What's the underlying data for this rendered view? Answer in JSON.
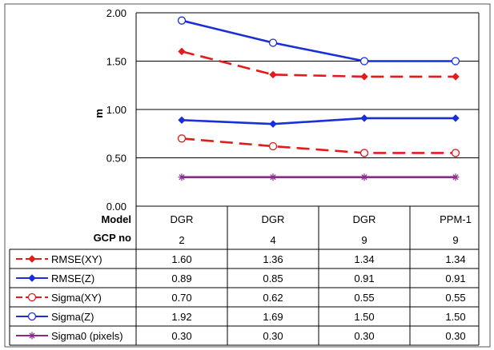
{
  "chart_data": {
    "type": "line",
    "ylabel": "m",
    "ylim": [
      0,
      2
    ],
    "yticks": [
      "2.00",
      "1.50",
      "1.00",
      "0.50",
      "0.00"
    ],
    "y_grid": true,
    "categories": [
      {
        "model": "DGR",
        "gcp": "2"
      },
      {
        "model": "DGR",
        "gcp": "4"
      },
      {
        "model": "DGR",
        "gcp": "9"
      },
      {
        "model": "PPM-1",
        "gcp": "9"
      }
    ],
    "row_headers": {
      "model": "Model",
      "gcp": "GCP no"
    },
    "series": [
      {
        "name": "RMSE(XY)",
        "values": [
          1.6,
          1.36,
          1.34,
          1.34
        ],
        "labels": [
          "1.60",
          "1.36",
          "1.34",
          "1.34"
        ],
        "color": "#e31b1b",
        "marker": "diamond-filled",
        "dash": true
      },
      {
        "name": "RMSE(Z)",
        "values": [
          0.89,
          0.85,
          0.91,
          0.91
        ],
        "labels": [
          "0.89",
          "0.85",
          "0.91",
          "0.91"
        ],
        "color": "#1a2fd6",
        "marker": "diamond-filled",
        "dash": false
      },
      {
        "name": "Sigma(XY)",
        "values": [
          0.7,
          0.62,
          0.55,
          0.55
        ],
        "labels": [
          "0.70",
          "0.62",
          "0.55",
          "0.55"
        ],
        "color": "#e31b1b",
        "marker": "circle-open",
        "dash": true
      },
      {
        "name": "Sigma(Z)",
        "values": [
          1.92,
          1.69,
          1.5,
          1.5
        ],
        "labels": [
          "1.92",
          "1.69",
          "1.50",
          "1.50"
        ],
        "color": "#1a2fd6",
        "marker": "circle-open",
        "dash": false
      },
      {
        "name": "Sigma0 (pixels)",
        "values": [
          0.3,
          0.3,
          0.3,
          0.3
        ],
        "labels": [
          "0.30",
          "0.30",
          "0.30",
          "0.30"
        ],
        "color": "#8a2a8a",
        "marker": "asterisk",
        "dash": false
      }
    ]
  }
}
